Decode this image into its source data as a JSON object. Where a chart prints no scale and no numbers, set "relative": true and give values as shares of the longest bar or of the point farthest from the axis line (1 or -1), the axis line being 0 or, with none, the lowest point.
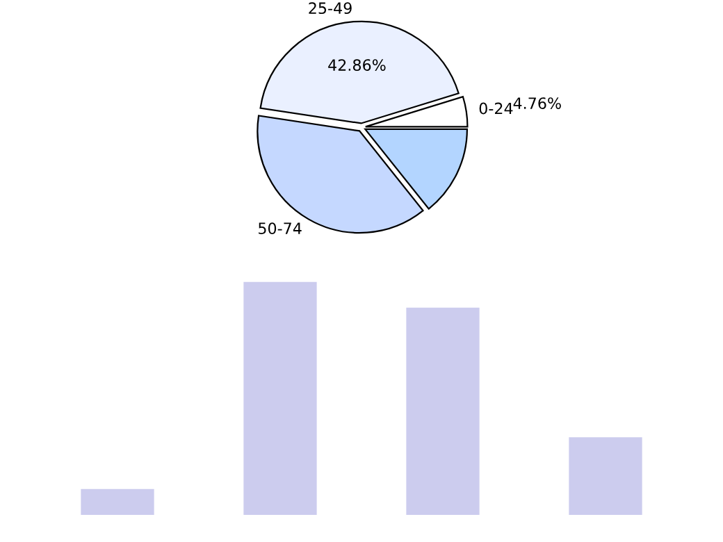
{
  "chart_data": [
    {
      "type": "pie",
      "categories": [
        "0-24",
        "25-49",
        "50-74",
        null
      ],
      "values": [
        4.76,
        42.86,
        38.1,
        14.29
      ],
      "colors": [
        "#ffffff",
        "#eaf0ff",
        "#c5d8ff",
        "#b3d5ff"
      ],
      "value_labels": [
        "4.76%",
        "42.86%",
        null,
        null
      ]
    },
    {
      "type": "bar",
      "relative": true,
      "categories": [
        null,
        null,
        null,
        null
      ],
      "values": [
        0.111,
        1,
        0.889,
        0.333
      ],
      "color": "#ccccee"
    }
  ]
}
